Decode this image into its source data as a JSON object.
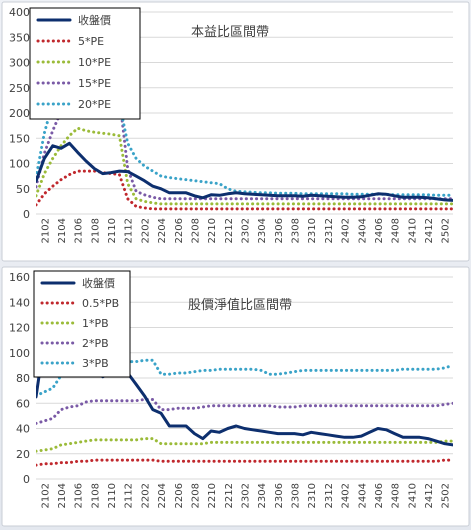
{
  "chart_data": [
    {
      "type": "line",
      "title": "本益比區間帶",
      "ylim": [
        0,
        400
      ],
      "yticks": [
        0,
        50,
        100,
        150,
        200,
        250,
        300,
        350,
        400
      ],
      "grid": true,
      "legend_position": "top-left",
      "x": [
        "2101",
        "2102",
        "2103",
        "2104",
        "2105",
        "2106",
        "2107",
        "2108",
        "2109",
        "2110",
        "2111",
        "2112",
        "2201",
        "2202",
        "2203",
        "2204",
        "2205",
        "2206",
        "2207",
        "2208",
        "2209",
        "2210",
        "2211",
        "2212",
        "2301",
        "2302",
        "2303",
        "2304",
        "2305",
        "2306",
        "2307",
        "2308",
        "2309",
        "2310",
        "2311",
        "2312",
        "2401",
        "2402",
        "2403",
        "2404",
        "2405",
        "2406",
        "2407",
        "2408",
        "2409",
        "2410",
        "2411",
        "2412",
        "2501",
        "2502",
        "2503"
      ],
      "xtick_labels": [
        "2102",
        "2104",
        "2106",
        "2108",
        "2110",
        "2112",
        "2202",
        "2204",
        "2206",
        "2208",
        "2210",
        "2212",
        "2302",
        "2304",
        "2306",
        "2308",
        "2310",
        "2312",
        "2402",
        "2404",
        "2406",
        "2408",
        "2410",
        "2412",
        "2502"
      ],
      "series": [
        {
          "name": "收盤價",
          "color": "#0d2f6e",
          "style": "solid",
          "values": [
            65,
            110,
            135,
            130,
            140,
            122,
            105,
            90,
            80,
            82,
            85,
            84,
            75,
            66,
            55,
            50,
            42,
            42,
            42,
            36,
            32,
            38,
            37,
            40,
            42,
            40,
            39,
            38,
            37,
            36,
            36,
            36,
            35,
            37,
            36,
            35,
            34,
            33,
            33,
            34,
            37,
            40,
            39,
            36,
            33,
            33,
            33,
            32,
            30,
            28,
            27
          ]
        },
        {
          "name": "5*PE",
          "color": "#c0282d",
          "style": "dotted",
          "values": [
            18,
            40,
            55,
            68,
            78,
            85,
            85,
            85,
            82,
            80,
            78,
            30,
            15,
            12,
            10,
            10,
            10,
            10,
            10,
            10,
            10,
            10,
            10,
            10,
            10,
            10,
            10,
            10,
            10,
            10,
            10,
            10,
            10,
            10,
            10,
            10,
            10,
            10,
            10,
            10,
            10,
            10,
            10,
            10,
            10,
            10,
            10,
            10,
            10,
            10,
            10
          ]
        },
        {
          "name": "10*PE",
          "color": "#9bbb39",
          "style": "dotted",
          "values": [
            36,
            80,
            110,
            135,
            155,
            170,
            165,
            162,
            160,
            158,
            155,
            60,
            30,
            25,
            22,
            20,
            20,
            20,
            20,
            20,
            20,
            20,
            20,
            20,
            20,
            20,
            20,
            20,
            20,
            20,
            20,
            20,
            20,
            20,
            20,
            20,
            20,
            20,
            20,
            20,
            20,
            20,
            20,
            20,
            20,
            20,
            20,
            20,
            20,
            20,
            20
          ]
        },
        {
          "name": "15*PE",
          "color": "#7a5aa6",
          "style": "dotted",
          "values": [
            54,
            120,
            165,
            203,
            235,
            255,
            248,
            243,
            240,
            237,
            232,
            90,
            45,
            38,
            33,
            30,
            30,
            30,
            30,
            30,
            30,
            30,
            30,
            30,
            30,
            30,
            30,
            30,
            30,
            30,
            30,
            30,
            30,
            30,
            30,
            30,
            30,
            30,
            30,
            30,
            30,
            30,
            30,
            30,
            30,
            30,
            30,
            30,
            30,
            30,
            30
          ]
        },
        {
          "name": "20*PE",
          "color": "#3aa3c8",
          "style": "dotted",
          "values": [
            72,
            160,
            220,
            270,
            313,
            340,
            330,
            324,
            320,
            316,
            220,
            140,
            110,
            95,
            85,
            75,
            72,
            70,
            68,
            66,
            64,
            62,
            60,
            50,
            45,
            44,
            43,
            42,
            42,
            41,
            41,
            41,
            40,
            40,
            40,
            40,
            40,
            40,
            39,
            39,
            39,
            39,
            39,
            38,
            38,
            38,
            38,
            38,
            37,
            37,
            37
          ]
        }
      ]
    },
    {
      "type": "line",
      "title": "股價淨值比區間帶",
      "ylim": [
        0,
        160
      ],
      "yticks": [
        0,
        20,
        40,
        60,
        80,
        100,
        120,
        140,
        160
      ],
      "grid": true,
      "legend_position": "top-left",
      "x": [
        "2101",
        "2102",
        "2103",
        "2104",
        "2105",
        "2106",
        "2107",
        "2108",
        "2109",
        "2110",
        "2111",
        "2112",
        "2201",
        "2202",
        "2203",
        "2204",
        "2205",
        "2206",
        "2207",
        "2208",
        "2209",
        "2210",
        "2211",
        "2212",
        "2301",
        "2302",
        "2303",
        "2304",
        "2305",
        "2306",
        "2307",
        "2308",
        "2309",
        "2310",
        "2311",
        "2312",
        "2401",
        "2402",
        "2403",
        "2404",
        "2405",
        "2406",
        "2407",
        "2408",
        "2409",
        "2410",
        "2411",
        "2412",
        "2501",
        "2502",
        "2503"
      ],
      "xtick_labels": [
        "2102",
        "2104",
        "2106",
        "2108",
        "2110",
        "2112",
        "2202",
        "2204",
        "2206",
        "2208",
        "2210",
        "2212",
        "2302",
        "2304",
        "2306",
        "2308",
        "2310",
        "2312",
        "2402",
        "2404",
        "2406",
        "2408",
        "2410",
        "2412",
        "2502"
      ],
      "series": [
        {
          "name": "收盤價",
          "color": "#0d2f6e",
          "style": "solid",
          "values": [
            65,
            110,
            135,
            130,
            140,
            122,
            105,
            90,
            81,
            84,
            85,
            84,
            75,
            66,
            55,
            52,
            42,
            42,
            42,
            36,
            32,
            38,
            37,
            40,
            42,
            40,
            39,
            38,
            37,
            36,
            36,
            36,
            35,
            37,
            36,
            35,
            34,
            33,
            33,
            34,
            37,
            40,
            39,
            36,
            33,
            33,
            33,
            32,
            30,
            28,
            27
          ]
        },
        {
          "name": "0.5*PB",
          "color": "#c0282d",
          "style": "dotted",
          "values": [
            11,
            12,
            12,
            13,
            13,
            14,
            14,
            15,
            15,
            15,
            15,
            15,
            15,
            15,
            15,
            14,
            14,
            14,
            14,
            14,
            14,
            14,
            14,
            14,
            14,
            14,
            14,
            14,
            14,
            14,
            14,
            14,
            14,
            14,
            14,
            14,
            14,
            14,
            14,
            14,
            14,
            14,
            14,
            14,
            14,
            14,
            14,
            14,
            14,
            15,
            15
          ]
        },
        {
          "name": "1*PB",
          "color": "#9bbb39",
          "style": "dotted",
          "values": [
            22,
            23,
            24,
            27,
            28,
            29,
            30,
            31,
            31,
            31,
            31,
            31,
            31,
            32,
            32,
            28,
            28,
            28,
            28,
            28,
            28,
            29,
            29,
            29,
            29,
            29,
            29,
            29,
            29,
            29,
            29,
            29,
            29,
            29,
            29,
            29,
            29,
            29,
            29,
            29,
            29,
            29,
            29,
            29,
            29,
            29,
            29,
            29,
            29,
            30,
            30
          ]
        },
        {
          "name": "2*PB",
          "color": "#7a5aa6",
          "style": "dotted",
          "values": [
            44,
            46,
            48,
            55,
            57,
            58,
            61,
            62,
            62,
            62,
            62,
            62,
            62,
            63,
            63,
            55,
            55,
            56,
            56,
            56,
            57,
            58,
            58,
            58,
            58,
            58,
            58,
            58,
            58,
            57,
            57,
            57,
            58,
            58,
            58,
            58,
            58,
            58,
            58,
            58,
            58,
            58,
            58,
            58,
            58,
            58,
            58,
            58,
            58,
            59,
            60
          ]
        },
        {
          "name": "3*PB",
          "color": "#3aa3c8",
          "style": "dotted",
          "values": [
            66,
            69,
            72,
            82,
            85,
            87,
            91,
            93,
            93,
            93,
            93,
            93,
            93,
            94,
            94,
            83,
            83,
            84,
            84,
            85,
            86,
            86,
            87,
            87,
            87,
            87,
            87,
            86,
            83,
            83,
            84,
            85,
            86,
            86,
            86,
            86,
            86,
            86,
            86,
            86,
            86,
            86,
            86,
            86,
            87,
            87,
            87,
            87,
            87,
            88,
            90
          ]
        }
      ]
    }
  ]
}
